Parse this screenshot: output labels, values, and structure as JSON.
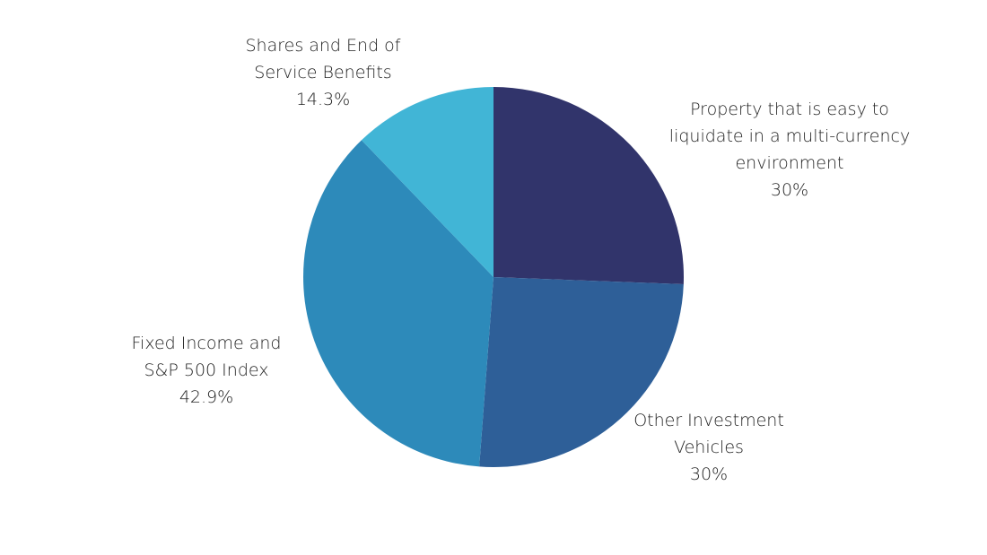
{
  "chart_data": {
    "type": "pie",
    "title": "",
    "slices": [
      {
        "key": "property",
        "label_lines": [
          "Property that is easy to",
          "liquidate in a multi-currency",
          "environment"
        ],
        "percent_text": "30%",
        "value": 30,
        "color": "#31346b"
      },
      {
        "key": "other",
        "label_lines": [
          "Other Investment",
          "Vehicles"
        ],
        "percent_text": "30%",
        "value": 30,
        "color": "#2e5f98"
      },
      {
        "key": "fixed",
        "label_lines": [
          "Fixed Income and",
          "S&P 500 Index"
        ],
        "percent_text": "42.9%",
        "value": 42.9,
        "color": "#2d8aba"
      },
      {
        "key": "shares",
        "label_lines": [
          "Shares and End of",
          "Service Benefits"
        ],
        "percent_text": "14.3%",
        "value": 14.3,
        "color": "#41b5d6"
      }
    ],
    "start_angle_deg": 0,
    "direction": "clockwise",
    "legend": "none"
  }
}
